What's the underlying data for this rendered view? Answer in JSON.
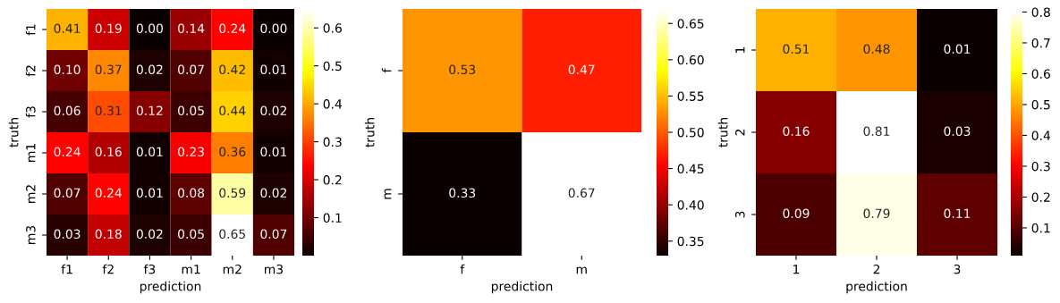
{
  "chart_data": [
    {
      "type": "heatmap",
      "xlabel": "prediction",
      "ylabel": "truth",
      "categories": [
        "f1",
        "f2",
        "f3",
        "m1",
        "m2",
        "m3"
      ],
      "y_categories": [
        "f1",
        "f2",
        "f3",
        "m1",
        "m2",
        "m3"
      ],
      "cells": [
        [
          0.41,
          0.19,
          0.0,
          0.14,
          0.24,
          0.0
        ],
        [
          0.1,
          0.37,
          0.02,
          0.07,
          0.42,
          0.01
        ],
        [
          0.06,
          0.31,
          0.12,
          0.05,
          0.44,
          0.02
        ],
        [
          0.24,
          0.16,
          0.01,
          0.23,
          0.36,
          0.01
        ],
        [
          0.07,
          0.24,
          0.01,
          0.08,
          0.59,
          0.02
        ],
        [
          0.03,
          0.18,
          0.02,
          0.05,
          0.65,
          0.07
        ]
      ],
      "cell_labels": [
        [
          "0.41",
          "0.19",
          "0.00",
          "0.14",
          "0.24",
          "0.00"
        ],
        [
          "0.10",
          "0.37",
          "0.02",
          "0.07",
          "0.42",
          "0.01"
        ],
        [
          "0.06",
          "0.31",
          "0.12",
          "0.05",
          "0.44",
          "0.02"
        ],
        [
          "0.24",
          "0.16",
          "0.01",
          "0.23",
          "0.36",
          "0.01"
        ],
        [
          "0.07",
          "0.24",
          "0.01",
          "0.08",
          "0.59",
          "0.02"
        ],
        [
          "0.03",
          "0.18",
          "0.02",
          "0.05",
          "0.65",
          "0.07"
        ]
      ],
      "clim": [
        0.0,
        0.65
      ],
      "cticks": [
        0.1,
        0.2,
        0.3,
        0.4,
        0.5,
        0.6
      ]
    },
    {
      "type": "heatmap",
      "xlabel": "prediction",
      "ylabel": "truth",
      "categories": [
        "f",
        "m"
      ],
      "y_categories": [
        "f",
        "m"
      ],
      "cells": [
        [
          0.53,
          0.47
        ],
        [
          0.33,
          0.67
        ]
      ],
      "cell_labels": [
        [
          "0.53",
          "0.47"
        ],
        [
          "0.33",
          "0.67"
        ]
      ],
      "clim": [
        0.33,
        0.67
      ],
      "cticks": [
        {
          "value": 0.35,
          "label": "0.35"
        },
        {
          "value": 0.4,
          "label": "0.40"
        },
        {
          "value": 0.45,
          "label": "0.45"
        },
        {
          "value": 0.5,
          "label": "0.50"
        },
        {
          "value": 0.55,
          "label": "0.55"
        },
        {
          "value": 0.6,
          "label": "0.60"
        },
        {
          "value": 0.65,
          "label": "0.65"
        }
      ]
    },
    {
      "type": "heatmap",
      "xlabel": "prediction",
      "ylabel": "truth",
      "categories": [
        "1",
        "2",
        "3"
      ],
      "y_categories": [
        "1",
        "2",
        "3"
      ],
      "cells": [
        [
          0.51,
          0.48,
          0.01
        ],
        [
          0.16,
          0.81,
          0.03
        ],
        [
          0.09,
          0.79,
          0.11
        ]
      ],
      "cell_labels": [
        [
          "0.51",
          "0.48",
          "0.01"
        ],
        [
          "0.16",
          "0.81",
          "0.03"
        ],
        [
          "0.09",
          "0.79",
          "0.11"
        ]
      ],
      "clim": [
        0.01,
        0.81
      ],
      "cticks": [
        0.1,
        0.2,
        0.3,
        0.4,
        0.5,
        0.6,
        0.7,
        0.8
      ]
    }
  ]
}
